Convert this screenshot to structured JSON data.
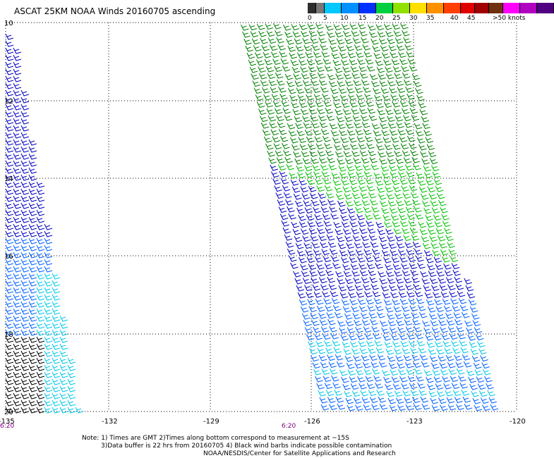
{
  "title": "ASCAT 25KM NOAA Winds 20160705 ascending",
  "legend": {
    "labels": [
      "0",
      "5",
      "10",
      "15",
      "20",
      "25",
      "30",
      "35",
      "40",
      "45",
      ">50 knots"
    ],
    "colors": [
      "#000000",
      "#3c3c3c",
      "#00b0f0",
      "#0070ff",
      "#0000c0",
      "#00c000",
      "#00e030",
      "#ffff00",
      "#ff9000",
      "#ff5000",
      "#ff0000",
      "#800000",
      "#6a3a10",
      "#ff40ff",
      "#c000c0",
      "#600090",
      "#300060"
    ]
  },
  "axes": {
    "lon_labels": [
      "-135",
      "-132",
      "-129",
      "-126",
      "-123",
      "-120"
    ],
    "lat_labels": [
      "10",
      "12",
      "14",
      "16",
      "18",
      "20"
    ]
  },
  "time_labels": [
    "6:20",
    "6:20"
  ],
  "notes": {
    "line1": "Note: 1) Times are GMT 2)Times along bottom correspond to measurement at ~15S",
    "line2": "3)Data buffer is 22 hrs from 20160705 4) Black wind barbs indicate possible contamination",
    "line3": "NOAA/NESDIS/Center for Satellite Applications and Research"
  },
  "barb_colors": {
    "calm": "#000000",
    "low": "#00c8e8",
    "mid": "#0060ff",
    "high": "#0000c0",
    "strong": "#00c000",
    "strongest": "#008000"
  }
}
